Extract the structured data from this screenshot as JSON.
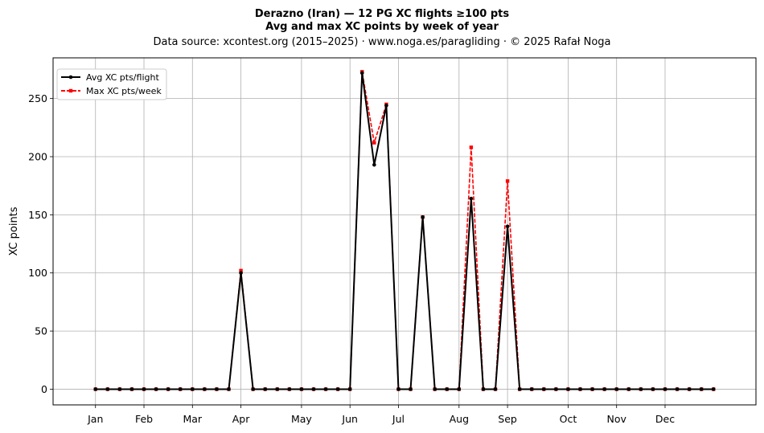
{
  "chart_data": {
    "type": "line",
    "title": "Derazno (Iran)  —  12 PG XC flights ≥100 pts",
    "subtitle": "Avg and max XC points by week of year",
    "source": "Data source: xcontest.org (2015–2025)  ·  www.noga.es/paragliding  ·  © 2025 Rafał Noga",
    "xlabel": "",
    "ylabel": "XC points",
    "ylim": [
      -13.5,
      285
    ],
    "xlim": [
      -2.5,
      55.5
    ],
    "yticks": [
      0,
      50,
      100,
      150,
      200,
      250
    ],
    "grid": true,
    "legend_position": "top-left",
    "x_ticks": [
      {
        "label": "Jan",
        "week": 1
      },
      {
        "label": "Feb",
        "week": 5
      },
      {
        "label": "Mar",
        "week": 9
      },
      {
        "label": "Apr",
        "week": 13
      },
      {
        "label": "May",
        "week": 18
      },
      {
        "label": "Jun",
        "week": 22
      },
      {
        "label": "Jul",
        "week": 26
      },
      {
        "label": "Aug",
        "week": 31
      },
      {
        "label": "Sep",
        "week": 35
      },
      {
        "label": "Oct",
        "week": 40
      },
      {
        "label": "Nov",
        "week": 44
      },
      {
        "label": "Dec",
        "week": 48
      }
    ],
    "x": [
      1,
      2,
      3,
      4,
      5,
      6,
      7,
      8,
      9,
      10,
      11,
      12,
      13,
      14,
      15,
      16,
      17,
      18,
      19,
      20,
      21,
      22,
      23,
      24,
      25,
      26,
      27,
      28,
      29,
      30,
      31,
      32,
      33,
      34,
      35,
      36,
      37,
      38,
      39,
      40,
      41,
      42,
      43,
      44,
      45,
      46,
      47,
      48,
      49,
      50,
      51,
      52
    ],
    "series": [
      {
        "name": "Avg XC pts/flight",
        "color": "#000000",
        "values": [
          0,
          0,
          0,
          0,
          0,
          0,
          0,
          0,
          0,
          0,
          0,
          0,
          100,
          0,
          0,
          0,
          0,
          0,
          0,
          0,
          0,
          0,
          272,
          193,
          244,
          0,
          0,
          148,
          0,
          0,
          0,
          164,
          0,
          0,
          140,
          0,
          0,
          0,
          0,
          0,
          0,
          0,
          0,
          0,
          0,
          0,
          0,
          0,
          0,
          0,
          0,
          0
        ]
      },
      {
        "name": "Max XC pts/week",
        "color": "#ff0000",
        "values": [
          0,
          0,
          0,
          0,
          0,
          0,
          0,
          0,
          0,
          0,
          0,
          0,
          102,
          0,
          0,
          0,
          0,
          0,
          0,
          0,
          0,
          0,
          273,
          212,
          245,
          0,
          0,
          148,
          0,
          0,
          0,
          208,
          0,
          0,
          179,
          0,
          0,
          0,
          0,
          0,
          0,
          0,
          0,
          0,
          0,
          0,
          0,
          0,
          0,
          0,
          0,
          0
        ]
      }
    ]
  }
}
